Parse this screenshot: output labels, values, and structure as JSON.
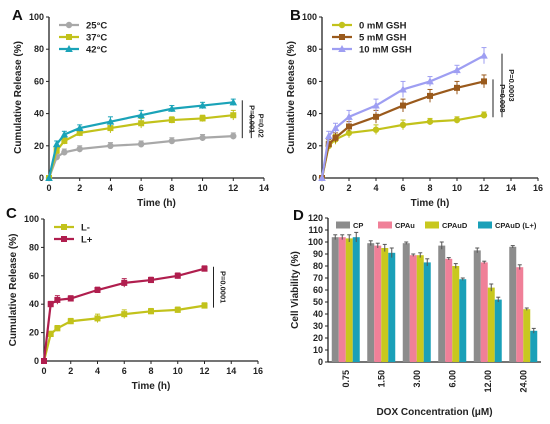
{
  "chart_data": [
    {
      "panel": "A",
      "type": "line",
      "xlabel": "Time (h)",
      "ylabel": "Cumulative Release (%)",
      "xlim": [
        0,
        14
      ],
      "ylim": [
        0,
        100
      ],
      "xticks": [
        0,
        2,
        4,
        6,
        8,
        10,
        12,
        14
      ],
      "yticks": [
        0,
        20,
        40,
        60,
        80,
        100
      ],
      "grid": false,
      "legend_position": "top-left",
      "x": [
        0,
        0.5,
        1,
        2,
        4,
        6,
        8,
        10,
        12
      ],
      "series": [
        {
          "name": "25°C",
          "color": "#a8a8a8",
          "marker": "circle",
          "values": [
            0,
            13,
            16,
            18,
            20,
            21,
            23,
            25,
            26
          ],
          "errors": [
            0,
            2,
            2,
            2,
            2,
            2,
            2,
            2,
            2
          ]
        },
        {
          "name": "37°C",
          "color": "#c2c21b",
          "marker": "square",
          "values": [
            0,
            17,
            23,
            28,
            31,
            34,
            36,
            37,
            39
          ],
          "errors": [
            0,
            2,
            2,
            2,
            3,
            3,
            2,
            2,
            3
          ]
        },
        {
          "name": "42°C",
          "color": "#1aa3b8",
          "marker": "triangle",
          "values": [
            0,
            21,
            27,
            31,
            35,
            39,
            43,
            45,
            47
          ],
          "errors": [
            0,
            2,
            2,
            2,
            3,
            3,
            2,
            2,
            2
          ]
        }
      ],
      "pvalues": [
        {
          "label": "P=0.001",
          "between": [
            "25°C",
            "42°C"
          ]
        },
        {
          "label": "P=0.02",
          "between": [
            "25°C",
            "37°C"
          ]
        }
      ]
    },
    {
      "panel": "B",
      "type": "line",
      "xlabel": "Time (h)",
      "ylabel": "Cumulative Release (%)",
      "xlim": [
        0,
        16
      ],
      "ylim": [
        0,
        100
      ],
      "xticks": [
        0,
        2,
        4,
        6,
        8,
        10,
        12,
        14,
        16
      ],
      "yticks": [
        0,
        20,
        40,
        60,
        80,
        100
      ],
      "grid": false,
      "legend_position": "top-left",
      "x": [
        0,
        0.5,
        1,
        2,
        4,
        6,
        8,
        10,
        12
      ],
      "series": [
        {
          "name": "0 mM GSH",
          "color": "#c2c21b",
          "marker": "circle",
          "values": [
            0,
            20,
            24,
            28,
            30,
            33,
            35,
            36,
            39
          ],
          "errors": [
            0,
            3,
            3,
            3,
            3,
            3,
            2,
            2,
            2
          ]
        },
        {
          "name": "5 mM GSH",
          "color": "#9a5a1c",
          "marker": "square",
          "values": [
            0,
            21,
            25,
            32,
            38,
            45,
            51,
            56,
            60
          ],
          "errors": [
            0,
            3,
            3,
            3,
            4,
            4,
            4,
            4,
            4
          ]
        },
        {
          "name": "10 mM GSH",
          "color": "#9e9ef2",
          "marker": "triangle",
          "values": [
            0,
            26,
            31,
            38,
            45,
            55,
            60,
            67,
            76
          ],
          "errors": [
            0,
            3,
            3,
            4,
            4,
            5,
            3,
            3,
            5
          ]
        }
      ],
      "pvalues": [
        {
          "label": "P=0.008",
          "between": [
            "0 mM GSH",
            "5 mM GSH"
          ]
        },
        {
          "label": "P=0.0003",
          "between": [
            "0 mM GSH",
            "10 mM GSH"
          ]
        }
      ]
    },
    {
      "panel": "C",
      "type": "line",
      "xlabel": "Time (h)",
      "ylabel": "Cumulative Release (%)",
      "xlim": [
        0,
        16
      ],
      "ylim": [
        0,
        100
      ],
      "xticks": [
        0,
        2,
        4,
        6,
        8,
        10,
        12,
        14,
        16
      ],
      "yticks": [
        0,
        20,
        40,
        60,
        80,
        100
      ],
      "grid": false,
      "legend_position": "top-left",
      "x": [
        0,
        0.5,
        1,
        2,
        4,
        6,
        8,
        10,
        12
      ],
      "series": [
        {
          "name": "L-",
          "color": "#c2c21b",
          "marker": "square",
          "values": [
            0,
            19,
            23,
            28,
            30,
            33,
            35,
            36,
            39
          ],
          "errors": [
            0,
            2,
            2,
            2,
            3,
            3,
            2,
            2,
            2
          ]
        },
        {
          "name": "L+",
          "color": "#b01e4e",
          "marker": "square",
          "values": [
            0,
            40,
            43,
            44,
            50,
            55,
            57,
            60,
            65
          ],
          "errors": [
            0,
            2,
            3,
            2,
            2,
            3,
            2,
            2,
            2
          ]
        }
      ],
      "pvalues": [
        {
          "label": "P=0.0001",
          "between": [
            "L-",
            "L+"
          ]
        }
      ]
    },
    {
      "panel": "D",
      "type": "bar",
      "xlabel": "DOX Concentration (μM)",
      "ylabel": "Cell Viability (%)",
      "ylim": [
        0,
        120
      ],
      "yticks": [
        0,
        10,
        20,
        30,
        40,
        50,
        60,
        70,
        80,
        90,
        100,
        110,
        120
      ],
      "grid": false,
      "legend_position": "top",
      "categories": [
        "0.75",
        "1.50",
        "3.00",
        "6.00",
        "12.00",
        "24.00"
      ],
      "series": [
        {
          "name": "CP",
          "color": "#8c8c8c",
          "values": [
            104,
            99,
            99,
            97,
            93,
            96
          ],
          "errors": [
            2,
            2,
            1,
            3,
            2,
            1
          ]
        },
        {
          "name": "CPAu",
          "color": "#f08098",
          "values": [
            104,
            97,
            89,
            86,
            83,
            79
          ],
          "errors": [
            2,
            2,
            1,
            1,
            1,
            2
          ]
        },
        {
          "name": "CPAuD",
          "color": "#c8c81e",
          "values": [
            103,
            95,
            89,
            80,
            62,
            44
          ],
          "errors": [
            3,
            3,
            2,
            2,
            3,
            1
          ]
        },
        {
          "name": "CPAuD (L+)",
          "color": "#1aa0b8",
          "values": [
            104,
            91,
            83,
            69,
            52,
            26
          ],
          "errors": [
            4,
            4,
            3,
            1,
            2,
            2
          ]
        }
      ]
    }
  ],
  "colors": {
    "axis": "#222222",
    "errorbar": "#555555"
  }
}
